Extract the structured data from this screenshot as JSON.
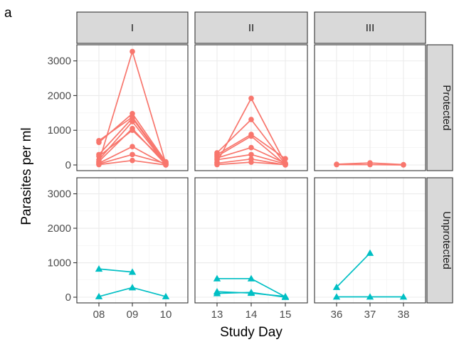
{
  "panel_tag": "a",
  "chart_data": {
    "type": "line",
    "xlabel": "Study Day",
    "ylabel": "Parasites per ml",
    "ylim": [
      0,
      3300
    ],
    "y_ticks": [
      0,
      1000,
      2000,
      3000
    ],
    "y_tick_labels": [
      "0",
      "1000",
      "2000",
      "3000"
    ],
    "grid": true,
    "column_facets": [
      {
        "label": "I",
        "x_ticks": [
          "08",
          "09",
          "10"
        ]
      },
      {
        "label": "II",
        "x_ticks": [
          "13",
          "14",
          "15"
        ]
      },
      {
        "label": "III",
        "x_ticks": [
          "36",
          "37",
          "38"
        ]
      }
    ],
    "row_facets": [
      {
        "label": "Protected",
        "color": "#F8766D",
        "marker": "circle"
      },
      {
        "label": "Unprotected",
        "color": "#00BFC4",
        "marker": "triangle"
      }
    ],
    "panels": [
      {
        "row": 0,
        "col": 0,
        "series": [
          {
            "values": [
              80,
              3270,
              40
            ]
          },
          {
            "values": [
              650,
              1480,
              90
            ]
          },
          {
            "values": [
              700,
              1380,
              60
            ]
          },
          {
            "values": [
              300,
              1350,
              30
            ]
          },
          {
            "values": [
              150,
              1250,
              20
            ]
          },
          {
            "values": [
              100,
              1050,
              10
            ]
          },
          {
            "values": [
              250,
              1000,
              80
            ]
          },
          {
            "values": [
              50,
              530,
              0
            ]
          },
          {
            "values": [
              30,
              300,
              40
            ]
          },
          {
            "values": [
              10,
              130,
              0
            ]
          }
        ]
      },
      {
        "row": 0,
        "col": 1,
        "series": [
          {
            "values": [
              80,
              1920,
              40
            ]
          },
          {
            "values": [
              350,
              1310,
              20
            ]
          },
          {
            "values": [
              300,
              880,
              180
            ]
          },
          {
            "values": [
              250,
              830,
              10
            ]
          },
          {
            "values": [
              200,
              500,
              50
            ]
          },
          {
            "values": [
              150,
              300,
              30
            ]
          },
          {
            "values": [
              50,
              170,
              0
            ]
          },
          {
            "values": [
              10,
              80,
              10
            ]
          }
        ]
      },
      {
        "row": 0,
        "col": 2,
        "series": [
          {
            "values": [
              20,
              60,
              10
            ]
          },
          {
            "values": [
              10,
              10,
              0
            ]
          }
        ]
      },
      {
        "row": 1,
        "col": 0,
        "series": [
          {
            "values": [
              820,
              730,
              null
            ]
          },
          {
            "values": [
              20,
              280,
              20
            ]
          }
        ]
      },
      {
        "row": 1,
        "col": 1,
        "series": [
          {
            "values": [
              540,
              540,
              10
            ]
          },
          {
            "values": [
              160,
              120,
              20
            ]
          },
          {
            "values": [
              110,
              140,
              0
            ]
          }
        ]
      },
      {
        "row": 1,
        "col": 2,
        "series": [
          {
            "values": [
              290,
              1280,
              null
            ]
          },
          {
            "values": [
              10,
              10,
              10
            ]
          }
        ]
      }
    ]
  }
}
